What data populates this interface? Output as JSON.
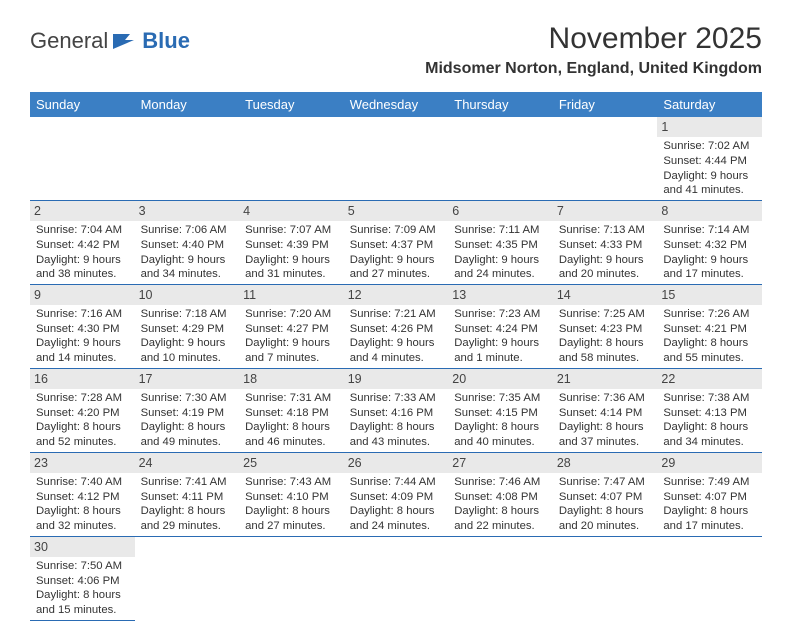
{
  "brand": {
    "part1": "General",
    "part2": "Blue",
    "accent": "#2a6bb3"
  },
  "title": "November 2025",
  "location": "Midsomer Norton, England, United Kingdom",
  "day_names": [
    "Sunday",
    "Monday",
    "Tuesday",
    "Wednesday",
    "Thursday",
    "Friday",
    "Saturday"
  ],
  "colors": {
    "header_bg": "#3b7fc4",
    "row_border": "#2a6bb3",
    "daynum_bg": "#e9e9e9"
  },
  "weeks": [
    [
      {
        "n": "",
        "blank": true
      },
      {
        "n": "",
        "blank": true
      },
      {
        "n": "",
        "blank": true
      },
      {
        "n": "",
        "blank": true
      },
      {
        "n": "",
        "blank": true
      },
      {
        "n": "",
        "blank": true
      },
      {
        "n": "1",
        "sr": "Sunrise: 7:02 AM",
        "ss": "Sunset: 4:44 PM",
        "dl1": "Daylight: 9 hours",
        "dl2": "and 41 minutes."
      }
    ],
    [
      {
        "n": "2",
        "sr": "Sunrise: 7:04 AM",
        "ss": "Sunset: 4:42 PM",
        "dl1": "Daylight: 9 hours",
        "dl2": "and 38 minutes."
      },
      {
        "n": "3",
        "sr": "Sunrise: 7:06 AM",
        "ss": "Sunset: 4:40 PM",
        "dl1": "Daylight: 9 hours",
        "dl2": "and 34 minutes."
      },
      {
        "n": "4",
        "sr": "Sunrise: 7:07 AM",
        "ss": "Sunset: 4:39 PM",
        "dl1": "Daylight: 9 hours",
        "dl2": "and 31 minutes."
      },
      {
        "n": "5",
        "sr": "Sunrise: 7:09 AM",
        "ss": "Sunset: 4:37 PM",
        "dl1": "Daylight: 9 hours",
        "dl2": "and 27 minutes."
      },
      {
        "n": "6",
        "sr": "Sunrise: 7:11 AM",
        "ss": "Sunset: 4:35 PM",
        "dl1": "Daylight: 9 hours",
        "dl2": "and 24 minutes."
      },
      {
        "n": "7",
        "sr": "Sunrise: 7:13 AM",
        "ss": "Sunset: 4:33 PM",
        "dl1": "Daylight: 9 hours",
        "dl2": "and 20 minutes."
      },
      {
        "n": "8",
        "sr": "Sunrise: 7:14 AM",
        "ss": "Sunset: 4:32 PM",
        "dl1": "Daylight: 9 hours",
        "dl2": "and 17 minutes."
      }
    ],
    [
      {
        "n": "9",
        "sr": "Sunrise: 7:16 AM",
        "ss": "Sunset: 4:30 PM",
        "dl1": "Daylight: 9 hours",
        "dl2": "and 14 minutes."
      },
      {
        "n": "10",
        "sr": "Sunrise: 7:18 AM",
        "ss": "Sunset: 4:29 PM",
        "dl1": "Daylight: 9 hours",
        "dl2": "and 10 minutes."
      },
      {
        "n": "11",
        "sr": "Sunrise: 7:20 AM",
        "ss": "Sunset: 4:27 PM",
        "dl1": "Daylight: 9 hours",
        "dl2": "and 7 minutes."
      },
      {
        "n": "12",
        "sr": "Sunrise: 7:21 AM",
        "ss": "Sunset: 4:26 PM",
        "dl1": "Daylight: 9 hours",
        "dl2": "and 4 minutes."
      },
      {
        "n": "13",
        "sr": "Sunrise: 7:23 AM",
        "ss": "Sunset: 4:24 PM",
        "dl1": "Daylight: 9 hours",
        "dl2": "and 1 minute."
      },
      {
        "n": "14",
        "sr": "Sunrise: 7:25 AM",
        "ss": "Sunset: 4:23 PM",
        "dl1": "Daylight: 8 hours",
        "dl2": "and 58 minutes."
      },
      {
        "n": "15",
        "sr": "Sunrise: 7:26 AM",
        "ss": "Sunset: 4:21 PM",
        "dl1": "Daylight: 8 hours",
        "dl2": "and 55 minutes."
      }
    ],
    [
      {
        "n": "16",
        "sr": "Sunrise: 7:28 AM",
        "ss": "Sunset: 4:20 PM",
        "dl1": "Daylight: 8 hours",
        "dl2": "and 52 minutes."
      },
      {
        "n": "17",
        "sr": "Sunrise: 7:30 AM",
        "ss": "Sunset: 4:19 PM",
        "dl1": "Daylight: 8 hours",
        "dl2": "and 49 minutes."
      },
      {
        "n": "18",
        "sr": "Sunrise: 7:31 AM",
        "ss": "Sunset: 4:18 PM",
        "dl1": "Daylight: 8 hours",
        "dl2": "and 46 minutes."
      },
      {
        "n": "19",
        "sr": "Sunrise: 7:33 AM",
        "ss": "Sunset: 4:16 PM",
        "dl1": "Daylight: 8 hours",
        "dl2": "and 43 minutes."
      },
      {
        "n": "20",
        "sr": "Sunrise: 7:35 AM",
        "ss": "Sunset: 4:15 PM",
        "dl1": "Daylight: 8 hours",
        "dl2": "and 40 minutes."
      },
      {
        "n": "21",
        "sr": "Sunrise: 7:36 AM",
        "ss": "Sunset: 4:14 PM",
        "dl1": "Daylight: 8 hours",
        "dl2": "and 37 minutes."
      },
      {
        "n": "22",
        "sr": "Sunrise: 7:38 AM",
        "ss": "Sunset: 4:13 PM",
        "dl1": "Daylight: 8 hours",
        "dl2": "and 34 minutes."
      }
    ],
    [
      {
        "n": "23",
        "sr": "Sunrise: 7:40 AM",
        "ss": "Sunset: 4:12 PM",
        "dl1": "Daylight: 8 hours",
        "dl2": "and 32 minutes."
      },
      {
        "n": "24",
        "sr": "Sunrise: 7:41 AM",
        "ss": "Sunset: 4:11 PM",
        "dl1": "Daylight: 8 hours",
        "dl2": "and 29 minutes."
      },
      {
        "n": "25",
        "sr": "Sunrise: 7:43 AM",
        "ss": "Sunset: 4:10 PM",
        "dl1": "Daylight: 8 hours",
        "dl2": "and 27 minutes."
      },
      {
        "n": "26",
        "sr": "Sunrise: 7:44 AM",
        "ss": "Sunset: 4:09 PM",
        "dl1": "Daylight: 8 hours",
        "dl2": "and 24 minutes."
      },
      {
        "n": "27",
        "sr": "Sunrise: 7:46 AM",
        "ss": "Sunset: 4:08 PM",
        "dl1": "Daylight: 8 hours",
        "dl2": "and 22 minutes."
      },
      {
        "n": "28",
        "sr": "Sunrise: 7:47 AM",
        "ss": "Sunset: 4:07 PM",
        "dl1": "Daylight: 8 hours",
        "dl2": "and 20 minutes."
      },
      {
        "n": "29",
        "sr": "Sunrise: 7:49 AM",
        "ss": "Sunset: 4:07 PM",
        "dl1": "Daylight: 8 hours",
        "dl2": "and 17 minutes."
      }
    ],
    [
      {
        "n": "30",
        "sr": "Sunrise: 7:50 AM",
        "ss": "Sunset: 4:06 PM",
        "dl1": "Daylight: 8 hours",
        "dl2": "and 15 minutes."
      },
      {
        "n": "",
        "blank": true
      },
      {
        "n": "",
        "blank": true
      },
      {
        "n": "",
        "blank": true
      },
      {
        "n": "",
        "blank": true
      },
      {
        "n": "",
        "blank": true
      },
      {
        "n": "",
        "blank": true
      }
    ]
  ]
}
